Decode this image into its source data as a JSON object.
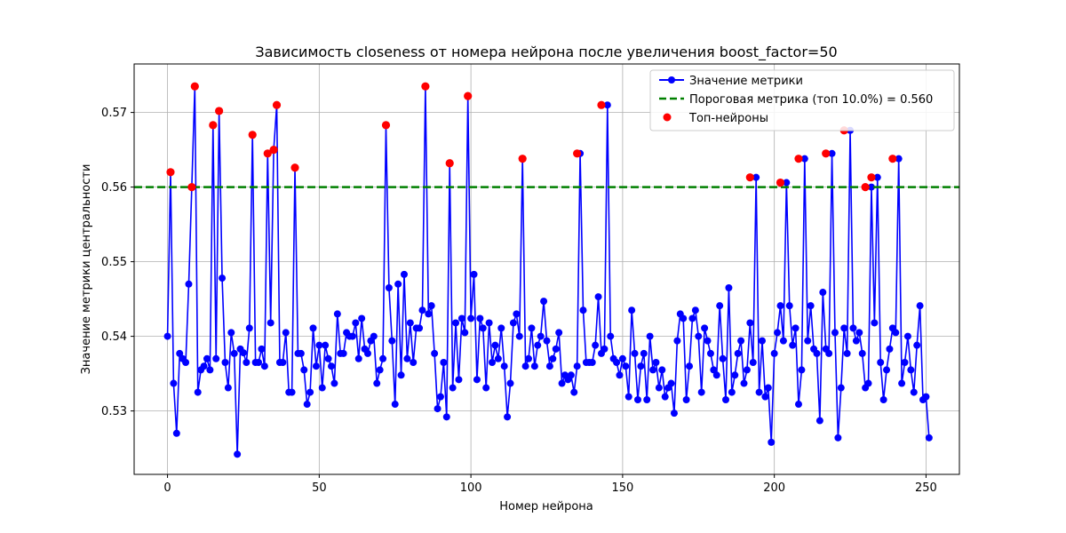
{
  "chart_data": {
    "type": "line",
    "title": "Зависимость closeness от номера нейрона после увеличения boost_factor=50",
    "xlabel": "Номер нейрона",
    "ylabel": "Значение метрики центральности",
    "xlim": [
      -11,
      261
    ],
    "ylim": [
      0.5215,
      0.5765
    ],
    "xticks": [
      0,
      50,
      100,
      150,
      200,
      250
    ],
    "yticks": [
      0.53,
      0.54,
      0.55,
      0.56,
      0.57
    ],
    "xtick_labels": [
      "0",
      "50",
      "100",
      "150",
      "200",
      "250"
    ],
    "ytick_labels": [
      "0.53",
      "0.54",
      "0.55",
      "0.56",
      "0.57"
    ],
    "grid": true,
    "legend_position": "top-right",
    "series": [
      {
        "name": "Значение метрики",
        "kind": "line-with-markers",
        "color": "#0000ff",
        "values": [
          0.54,
          0.562,
          0.5337,
          0.527,
          0.5377,
          0.537,
          0.5365,
          0.547,
          0.56,
          0.5735,
          0.5325,
          0.5355,
          0.536,
          0.537,
          0.5355,
          0.5683,
          0.537,
          0.5702,
          0.5478,
          0.5365,
          0.5331,
          0.5405,
          0.5377,
          0.5242,
          0.5383,
          0.5378,
          0.5365,
          0.5411,
          0.567,
          0.5365,
          0.5365,
          0.5383,
          0.536,
          0.5645,
          0.5418,
          0.565,
          0.571,
          0.5365,
          0.5365,
          0.5405,
          0.5325,
          0.5325,
          0.5626,
          0.5377,
          0.5377,
          0.5355,
          0.5309,
          0.5325,
          0.5411,
          0.536,
          0.5388,
          0.5331,
          0.5388,
          0.537,
          0.536,
          0.5337,
          0.543,
          0.5377,
          0.5377,
          0.5405,
          0.54,
          0.54,
          0.5418,
          0.537,
          0.5424,
          0.5383,
          0.5377,
          0.5394,
          0.54,
          0.5337,
          0.5355,
          0.537,
          0.5683,
          0.5465,
          0.5394,
          0.5309,
          0.547,
          0.5348,
          0.5483,
          0.537,
          0.5418,
          0.5365,
          0.5411,
          0.5411,
          0.5435,
          0.5735,
          0.543,
          0.5441,
          0.5377,
          0.5303,
          0.5319,
          0.5365,
          0.5292,
          0.5632,
          0.5331,
          0.5418,
          0.5342,
          0.5424,
          0.5405,
          0.5722,
          0.5424,
          0.5483,
          0.5342,
          0.5424,
          0.5411,
          0.5331,
          0.5418,
          0.5365,
          0.5388,
          0.537,
          0.5411,
          0.536,
          0.5292,
          0.5337,
          0.5418,
          0.543,
          0.54,
          0.5638,
          0.536,
          0.537,
          0.5411,
          0.536,
          0.5388,
          0.54,
          0.5447,
          0.5394,
          0.536,
          0.537,
          0.5383,
          0.5405,
          0.5337,
          0.5348,
          0.5342,
          0.5348,
          0.5325,
          0.536,
          0.5645,
          0.5435,
          0.5365,
          0.5365,
          0.5365,
          0.5388,
          0.5453,
          0.5377,
          0.5383,
          0.571,
          0.54,
          0.537,
          0.5365,
          0.5348,
          0.537,
          0.536,
          0.5319,
          0.5435,
          0.5377,
          0.5315,
          0.536,
          0.5377,
          0.5315,
          0.54,
          0.5355,
          0.5365,
          0.5331,
          0.5355,
          0.5319,
          0.5331,
          0.5337,
          0.5297,
          0.5394,
          0.543,
          0.5424,
          0.5315,
          0.536,
          0.5424,
          0.5435,
          0.54,
          0.5325,
          0.5411,
          0.5394,
          0.5377,
          0.5355,
          0.5348,
          0.5441,
          0.537,
          0.5315,
          0.5465,
          0.5325,
          0.5348,
          0.5377,
          0.5394,
          0.5337,
          0.5355,
          0.5418,
          0.5365,
          0.5613,
          0.5325,
          0.5394,
          0.5319,
          0.5331,
          0.5258,
          0.5377,
          0.5405,
          0.5441,
          0.5394,
          0.5606,
          0.5441,
          0.5388,
          0.5411,
          0.5309,
          0.5355,
          0.5638,
          0.5394,
          0.5441,
          0.5383,
          0.5377,
          0.5287,
          0.5459,
          0.5383,
          0.5377,
          0.5645,
          0.5405,
          0.5264,
          0.5331,
          0.5411,
          0.5377,
          0.5676,
          0.5411,
          0.5394,
          0.5405,
          0.5377,
          0.5331,
          0.5337,
          0.56,
          0.5418,
          0.5613,
          0.5365,
          0.5315,
          0.5355,
          0.5383,
          0.5411,
          0.5405,
          0.5638,
          0.5337,
          0.5365,
          0.54,
          0.5355,
          0.5325,
          0.5388,
          0.5441,
          0.5315,
          0.5319,
          0.5264
        ]
      },
      {
        "name": "Пороговая метрика (топ 10.0%) = 0.560",
        "kind": "hline",
        "color": "#008000",
        "value": 0.56
      },
      {
        "name": "Топ-нейроны",
        "kind": "scatter",
        "color": "#ff0000",
        "points": [
          [
            1,
            0.562
          ],
          [
            8,
            0.56
          ],
          [
            9,
            0.5735
          ],
          [
            15,
            0.5683
          ],
          [
            17,
            0.5702
          ],
          [
            28,
            0.567
          ],
          [
            33,
            0.5645
          ],
          [
            35,
            0.565
          ],
          [
            36,
            0.571
          ],
          [
            42,
            0.5626
          ],
          [
            72,
            0.5683
          ],
          [
            85,
            0.5735
          ],
          [
            93,
            0.5632
          ],
          [
            99,
            0.5722
          ],
          [
            117,
            0.5638
          ],
          [
            135,
            0.5645
          ],
          [
            143,
            0.571
          ],
          [
            192,
            0.5613
          ],
          [
            202,
            0.5606
          ],
          [
            208,
            0.5638
          ],
          [
            217,
            0.5645
          ],
          [
            223,
            0.5676
          ],
          [
            230,
            0.56
          ],
          [
            232,
            0.5613
          ],
          [
            239,
            0.5638
          ]
        ]
      }
    ]
  }
}
